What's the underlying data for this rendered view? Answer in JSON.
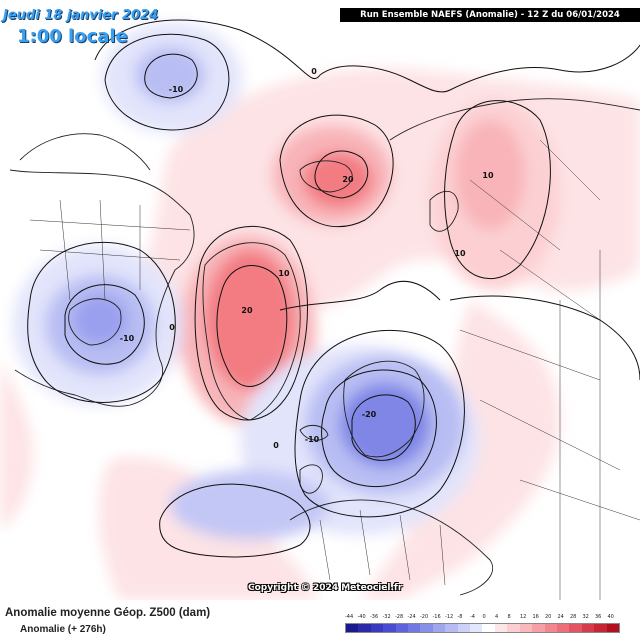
{
  "header": {
    "date": "Jeudi 18 janvier 2024",
    "time": "1:00 locale",
    "run": "Run Ensemble NAEFS  (Anomalie)  - 12 Z du 06/01/2024"
  },
  "map": {
    "copyright": "Copyright © 2024 Meteociel.fr",
    "contour_labels": [
      {
        "id": "pacific-low",
        "text": "-10"
      },
      {
        "id": "arctic-high",
        "text": "20"
      },
      {
        "id": "siberia-high",
        "text": "10"
      },
      {
        "id": "siberia-high-2",
        "text": "10"
      },
      {
        "id": "greenland-high",
        "text": "20"
      },
      {
        "id": "greenland-ring",
        "text": "10"
      },
      {
        "id": "canada-low",
        "text": "-10"
      },
      {
        "id": "canada-zero",
        "text": "0"
      },
      {
        "id": "europe-low",
        "text": "-20"
      },
      {
        "id": "atlantic-low",
        "text": "-10"
      },
      {
        "id": "atlantic-zero",
        "text": "0"
      },
      {
        "id": "pacific-zero",
        "text": "0"
      }
    ],
    "colors": {
      "positive_light": "#fde3e5",
      "positive_mid": "#f8b4b8",
      "positive_strong": "#f27b82",
      "negative_light": "#e2e4fb",
      "negative_mid": "#b8bdf3",
      "negative_strong": "#7f86e6"
    }
  },
  "footer": {
    "title": "Anomalie moyenne Géop. Z500 (dam)",
    "subtitle": "Anomalie (+ 276h)"
  },
  "legend": {
    "labels": [
      "-44",
      "-40",
      "-36",
      "-32",
      "-28",
      "-24",
      "-20",
      "-16",
      "-12",
      "-8",
      "-4",
      "0",
      "4",
      "8",
      "12",
      "16",
      "20",
      "24",
      "28",
      "32",
      "36",
      "40"
    ],
    "colors": [
      "#1a1a8c",
      "#2a2aa8",
      "#3a3ac0",
      "#4b4bd2",
      "#5e62dd",
      "#7278e3",
      "#878fe8",
      "#9ea6ee",
      "#b6bcf3",
      "#cdd1f7",
      "#e4e6fb",
      "#ffffff",
      "#fde6e7",
      "#fbcfd2",
      "#f8b8bc",
      "#f5a0a6",
      "#f1878f",
      "#ec6f79",
      "#e25561",
      "#d53c4a",
      "#c52534",
      "#b01020"
    ]
  }
}
